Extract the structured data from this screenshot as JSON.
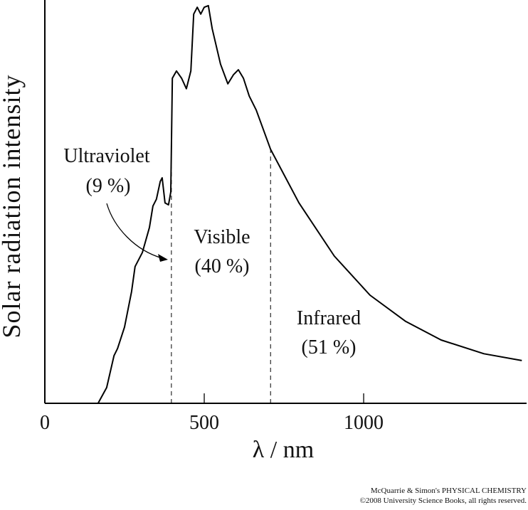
{
  "chart_data": {
    "type": "line",
    "ylabel": "Solar radiation intensity",
    "xlabel": "λ / nm",
    "x": [
      167,
      194,
      217,
      228,
      250,
      272,
      283,
      306,
      328,
      339,
      350,
      362,
      368,
      377,
      388,
      395,
      400,
      413,
      429,
      444,
      458,
      467,
      478,
      489,
      500,
      513,
      525,
      551,
      574,
      592,
      607,
      623,
      641,
      663,
      708,
      797,
      908,
      1020,
      1132,
      1243,
      1377,
      1496
    ],
    "y": [
      0,
      3.9,
      11.8,
      13.6,
      18.9,
      27.7,
      33.9,
      37.4,
      43.6,
      48.9,
      50.6,
      55.0,
      55.9,
      49.7,
      49.2,
      52.4,
      80.6,
      82.4,
      80.6,
      78.0,
      82.4,
      96.5,
      98.2,
      96.5,
      98.2,
      98.6,
      92.9,
      84.1,
      79.2,
      81.5,
      82.7,
      80.6,
      76.2,
      72.7,
      63.0,
      49.7,
      36.5,
      26.8,
      20.3,
      15.7,
      12.3,
      10.6
    ],
    "color": "#000000",
    "xlim": [
      0,
      1511
    ],
    "ylim": [
      0,
      100
    ],
    "xticks": [
      0,
      500,
      1000
    ],
    "boundaries": [
      397,
      708
    ],
    "regions": [
      {
        "name": "Ultraviolet",
        "share": "(9 %)"
      },
      {
        "name": "Visible",
        "share": "(40 %)"
      },
      {
        "name": "Infrared",
        "share": "(51 %)"
      }
    ]
  },
  "credit": [
    "McQuarrie & Simon's PHYSICAL CHEMISTRY",
    "©2008 University Science Books, all rights reserved."
  ]
}
